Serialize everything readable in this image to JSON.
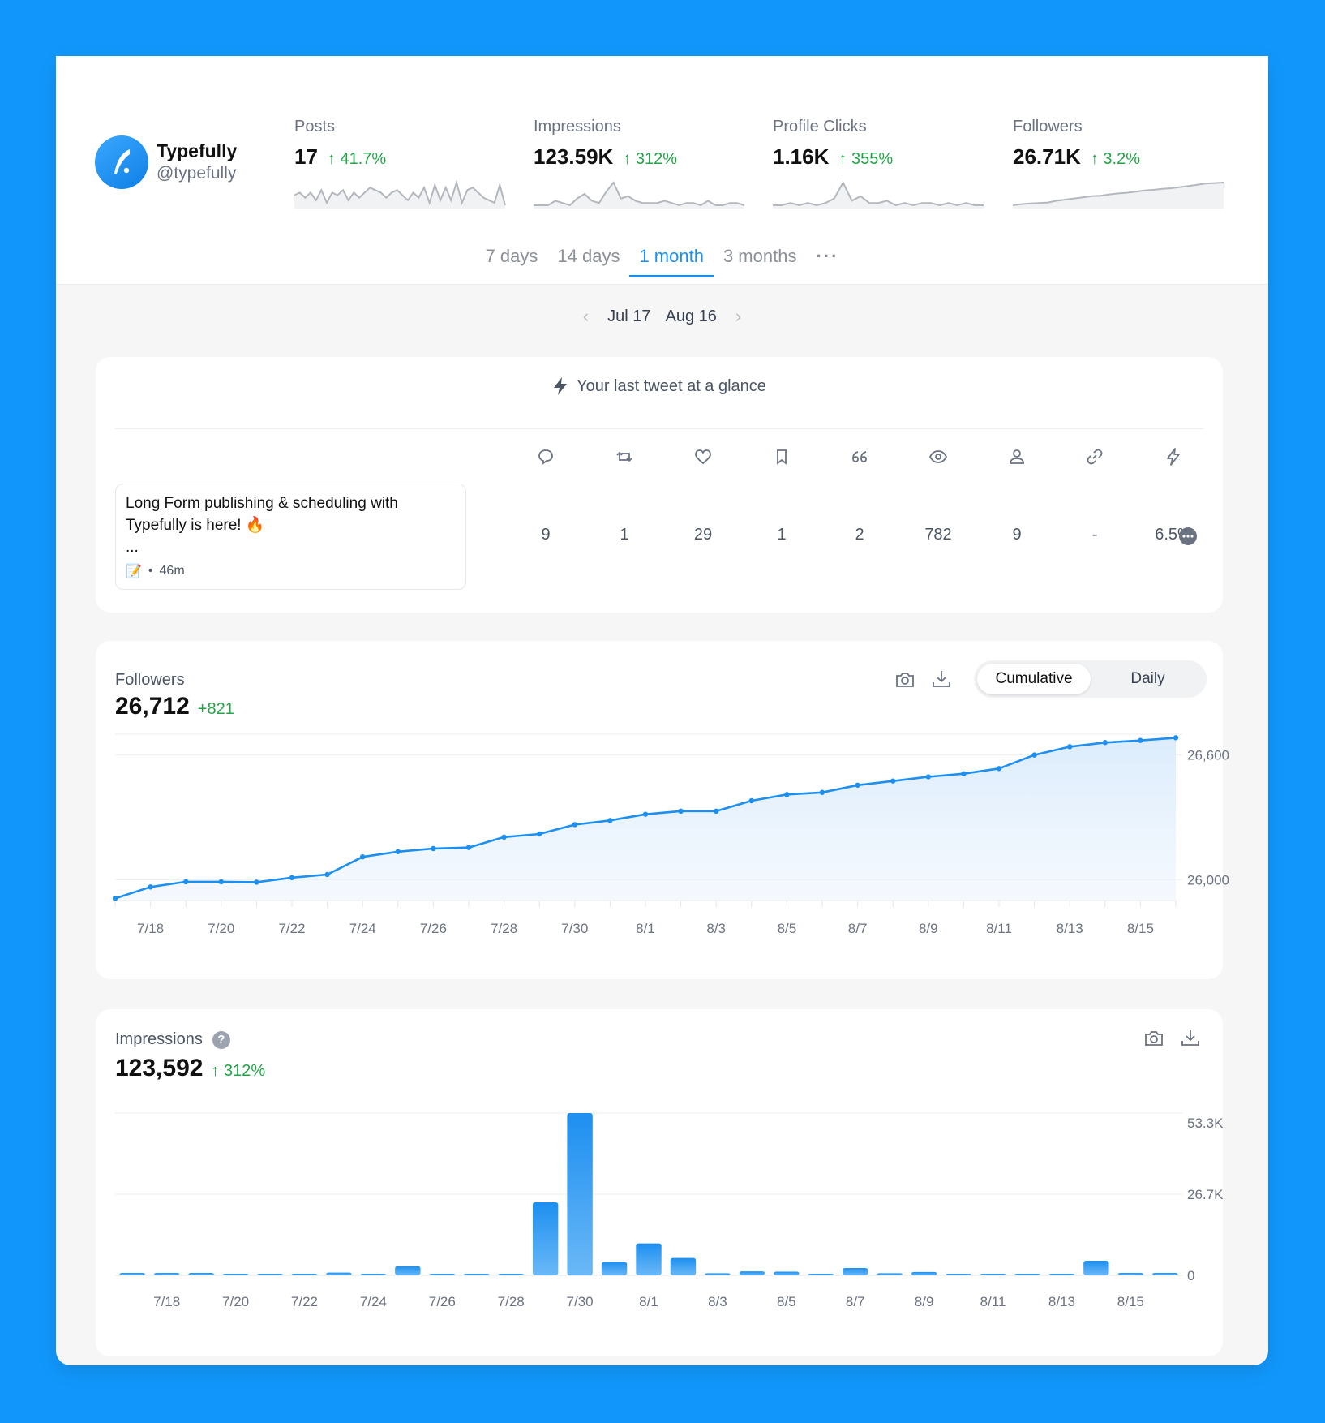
{
  "account": {
    "name": "Typefully",
    "handle": "@typefully"
  },
  "metrics": [
    {
      "label": "Posts",
      "value": "17",
      "change": "41.7%",
      "spark": [
        5,
        6,
        4,
        6,
        3,
        7,
        2,
        6,
        5,
        7,
        3,
        6,
        4,
        6,
        8,
        7,
        6,
        4,
        6,
        7,
        5,
        3,
        6,
        4,
        8,
        2,
        9,
        3,
        8,
        3,
        10,
        2,
        7,
        8,
        6,
        4,
        3,
        2,
        9,
        1
      ]
    },
    {
      "label": "Impressions",
      "value": "123.59K",
      "change": "312%",
      "spark": [
        0,
        0,
        0,
        0.2,
        0.1,
        0,
        0.3,
        0.5,
        0.2,
        0.1,
        0.6,
        1,
        0.3,
        0.4,
        0.2,
        0.1,
        0.1,
        0.1,
        0.2,
        0.1,
        0,
        0.1,
        0.1,
        0,
        0.2,
        0,
        0,
        0.1,
        0.1,
        0
      ]
    },
    {
      "label": "Profile Clicks",
      "value": "1.16K",
      "change": "355%",
      "spark": [
        0,
        0,
        0.1,
        0,
        0.1,
        0,
        0.1,
        0.3,
        1,
        0.2,
        0.4,
        0.1,
        0.1,
        0.2,
        0,
        0.1,
        0,
        0.1,
        0.1,
        0,
        0.1,
        0,
        0.1,
        0,
        0
      ]
    },
    {
      "label": "Followers",
      "value": "26.71K",
      "change": "3.2%",
      "spark": [
        0,
        0.05,
        0.08,
        0.1,
        0.12,
        0.2,
        0.25,
        0.3,
        0.35,
        0.4,
        0.42,
        0.48,
        0.52,
        0.55,
        0.6,
        0.65,
        0.68,
        0.72,
        0.75,
        0.8,
        0.85,
        0.9,
        0.96,
        0.98,
        1
      ]
    }
  ],
  "tabs": [
    "7 days",
    "14 days",
    "1 month",
    "3 months",
    "···"
  ],
  "date_range": {
    "start": "Jul 17",
    "end": "Aug 16"
  },
  "glance": {
    "title": "Your last tweet at a glance",
    "tweet_line1": "Long Form publishing & scheduling with",
    "tweet_line2": "Typefully is here! 🔥",
    "tweet_line3": "...",
    "tweet_time": "46m",
    "stats": [
      {
        "icon": "reply-icon",
        "value": "9"
      },
      {
        "icon": "retweet-icon",
        "value": "1"
      },
      {
        "icon": "like-icon",
        "value": "29"
      },
      {
        "icon": "bookmark-icon",
        "value": "1"
      },
      {
        "icon": "quote-icon",
        "value": "2"
      },
      {
        "icon": "views-icon",
        "value": "782"
      },
      {
        "icon": "profile-icon",
        "value": "9"
      },
      {
        "icon": "link-icon",
        "value": "-"
      },
      {
        "icon": "engagement-icon",
        "value": "6.5%"
      }
    ]
  },
  "followers_chart": {
    "title": "Followers",
    "value": "26,712",
    "change": "+821",
    "toggle": {
      "cumulative": "Cumulative",
      "daily": "Daily"
    }
  },
  "impressions_chart": {
    "title": "Impressions",
    "help": "?",
    "value": "123,592",
    "change": "312%"
  },
  "chart_data": [
    {
      "type": "line",
      "x": [
        "7/17",
        "7/18",
        "7/19",
        "7/20",
        "7/21",
        "7/22",
        "7/23",
        "7/24",
        "7/25",
        "7/26",
        "7/27",
        "7/28",
        "7/29",
        "7/30",
        "7/31",
        "8/1",
        "8/2",
        "8/3",
        "8/4",
        "8/5",
        "8/6",
        "8/7",
        "8/8",
        "8/9",
        "8/10",
        "8/11",
        "8/12",
        "8/13",
        "8/14",
        "8/15",
        "8/16"
      ],
      "values": [
        25910,
        25965,
        25990,
        25990,
        25988,
        26010,
        26025,
        26110,
        26135,
        26150,
        26155,
        26205,
        26220,
        26265,
        26285,
        26315,
        26330,
        26330,
        26380,
        26410,
        26420,
        26455,
        26475,
        26495,
        26510,
        26535,
        26600,
        26640,
        26660,
        26670,
        26683
      ],
      "xticks": [
        "7/18",
        "7/20",
        "7/22",
        "7/24",
        "7/26",
        "7/28",
        "7/30",
        "8/1",
        "8/3",
        "8/5",
        "8/7",
        "8/9",
        "8/11",
        "8/13",
        "8/15"
      ],
      "yticks": [
        "26,600",
        "26,000"
      ],
      "ylim": [
        25900,
        26700
      ]
    },
    {
      "type": "bar",
      "x": [
        "7/17",
        "7/18",
        "7/19",
        "7/20",
        "7/21",
        "7/22",
        "7/23",
        "7/24",
        "7/25",
        "7/26",
        "7/27",
        "7/28",
        "7/29",
        "7/30",
        "7/31",
        "8/1",
        "8/2",
        "8/3",
        "8/4",
        "8/5",
        "8/6",
        "8/7",
        "8/8",
        "8/9",
        "8/10",
        "8/11",
        "8/12",
        "8/13",
        "8/14",
        "8/15",
        "8/16"
      ],
      "values": [
        800,
        800,
        800,
        300,
        100,
        100,
        900,
        300,
        3000,
        400,
        100,
        100,
        24000,
        53300,
        4400,
        10500,
        5700,
        700,
        1300,
        1200,
        300,
        2400,
        700,
        1100,
        400,
        100,
        200,
        200,
        4800,
        800,
        800
      ],
      "xticks": [
        "7/18",
        "7/20",
        "7/22",
        "7/24",
        "7/26",
        "7/28",
        "7/30",
        "8/1",
        "8/3",
        "8/5",
        "8/7",
        "8/9",
        "8/11",
        "8/13",
        "8/15"
      ],
      "yticks": [
        "53.3K",
        "26.7K",
        "0"
      ],
      "ylim": [
        0,
        53300
      ]
    }
  ],
  "colors": {
    "accent": "#1d8ff0",
    "positive": "#22a447",
    "background": "#1197fb"
  }
}
